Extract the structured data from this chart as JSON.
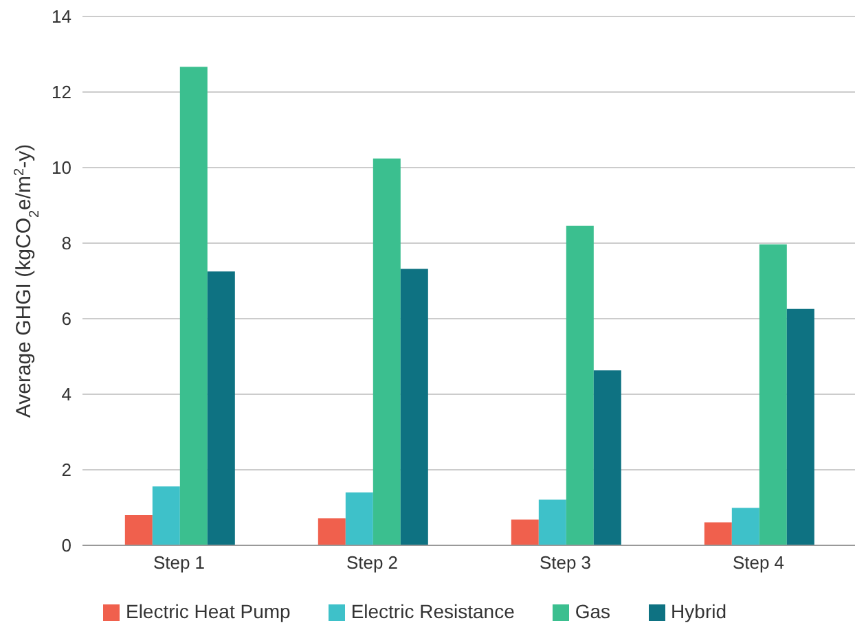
{
  "chart_data": {
    "type": "bar",
    "categories": [
      "Step 1",
      "Step 2",
      "Step 3",
      "Step 4"
    ],
    "series": [
      {
        "name": "Electric Heat Pump",
        "color": "#f0604d",
        "values": [
          0.8,
          0.72,
          0.68,
          0.61
        ]
      },
      {
        "name": "Electric Resistance",
        "color": "#3ec1c9",
        "values": [
          1.56,
          1.4,
          1.21,
          0.99
        ]
      },
      {
        "name": "Gas",
        "color": "#3bbf8f",
        "values": [
          12.67,
          10.24,
          8.46,
          7.97
        ]
      },
      {
        "name": "Hybrid",
        "color": "#0e7282",
        "values": [
          7.25,
          7.32,
          4.63,
          6.26
        ]
      }
    ],
    "ylabel": "Average GHGI (kgCO$_{2}$e/m$^{2}$-y)",
    "ylim": [
      0,
      14
    ],
    "yticks": [
      0,
      2,
      4,
      6,
      8,
      10,
      12,
      14
    ],
    "grid": "y",
    "legend": "bottom"
  }
}
